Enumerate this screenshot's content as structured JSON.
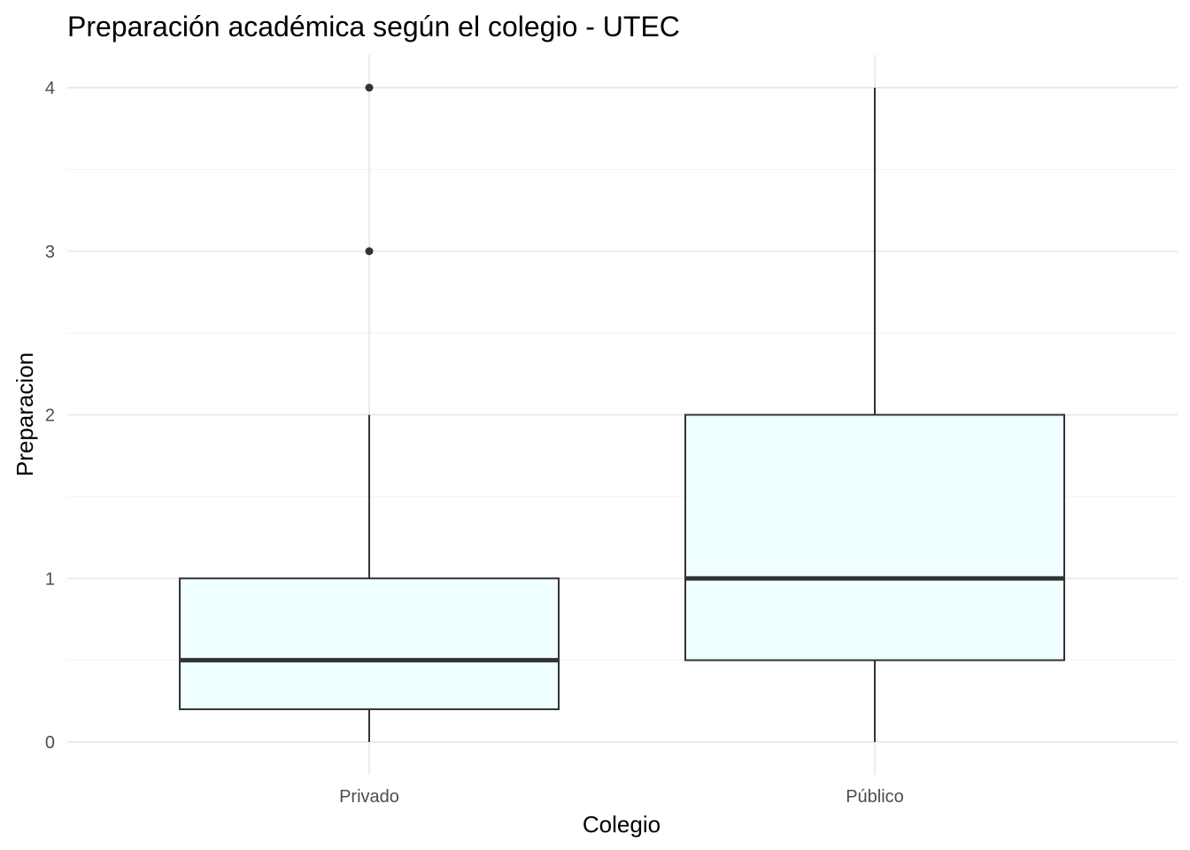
{
  "chart_data": {
    "type": "box",
    "title": "Preparación académica según el colegio - UTEC",
    "xlabel": "Colegio",
    "ylabel": "Preparacion",
    "ylim": [
      -0.15,
      4.2
    ],
    "yticks": [
      0,
      1,
      2,
      3,
      4
    ],
    "grid": true,
    "box_fill": "#F0FFFF",
    "line_color": "#333333",
    "categories": [
      "Privado",
      "Público"
    ],
    "boxes": [
      {
        "category": "Privado",
        "whisker_low": 0,
        "q1": 0.2,
        "median": 0.5,
        "q3": 1,
        "whisker_high": 2,
        "outliers": [
          3,
          4
        ]
      },
      {
        "category": "Público",
        "whisker_low": 0,
        "q1": 0.5,
        "median": 1,
        "q3": 2,
        "whisker_high": 4,
        "outliers": []
      }
    ]
  }
}
